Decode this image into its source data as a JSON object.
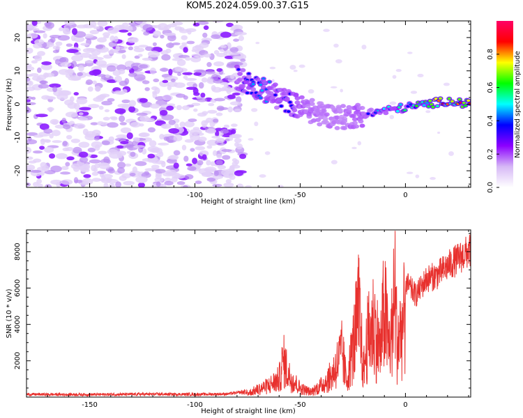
{
  "title": "KOM5.2024.059.00.37.G15",
  "chart_data": [
    {
      "type": "heatmap",
      "xlabel": "Height of straight line (km)",
      "ylabel": "Frequency (Hz)",
      "xlim": [
        -180,
        31
      ],
      "ylim": [
        -25,
        25
      ],
      "xticks": [
        -150,
        -100,
        -50,
        0
      ],
      "yticks": [
        -20,
        -10,
        0,
        10,
        20
      ],
      "colorbar": {
        "label": "Normalized spectral amplitude",
        "range": [
          0,
          1
        ],
        "ticks": [
          "0.0",
          "0.2",
          "0.4",
          "0.6",
          "0.8"
        ],
        "colormap": [
          "#ffffff",
          "#d6b8f6",
          "#8c00ff",
          "#0000ff",
          "#00ffff",
          "#00ff00",
          "#ffff00",
          "#ff0000",
          "#ff0066"
        ]
      },
      "ridge": {
        "description_points_x": [
          -80,
          -70,
          -60,
          -50,
          -40,
          -30,
          -20,
          -10,
          0,
          10,
          20,
          30
        ],
        "frequency_y": [
          8,
          5,
          2,
          -1,
          -3,
          -4,
          -3,
          -2,
          -1,
          0,
          1,
          0
        ],
        "amplitude": [
          0.3,
          0.4,
          0.35,
          0.3,
          0.2,
          0.2,
          0.3,
          0.45,
          0.5,
          0.6,
          0.8,
          0.9
        ]
      },
      "noise_region_x": [
        -180,
        -77
      ]
    },
    {
      "type": "line",
      "xlabel": "Height of straight line (km)",
      "ylabel": "SNR (10 * v/v)",
      "xlim": [
        -180,
        31
      ],
      "ylim": [
        0,
        9200
      ],
      "xticks": [
        -150,
        -100,
        -50,
        0
      ],
      "yticks": [
        2000,
        4000,
        6000,
        8000
      ],
      "color": "#e8312e",
      "series": [
        {
          "x": [
            -180,
            -150,
            -120,
            -100,
            -85,
            -75,
            -70,
            -65,
            -60,
            -58,
            -55,
            -50,
            -45,
            -40,
            -35,
            -30,
            -28,
            -25,
            -22,
            -20,
            -18,
            -15,
            -12,
            -10,
            -8,
            -6,
            -5,
            -4,
            -2,
            0,
            5,
            10,
            15,
            20,
            25,
            31
          ],
          "y": [
            150,
            140,
            160,
            150,
            170,
            300,
            600,
            900,
            1400,
            2900,
            1600,
            700,
            400,
            900,
            1700,
            3500,
            1200,
            3800,
            6700,
            2000,
            4500,
            5800,
            3600,
            7100,
            3900,
            5500,
            9100,
            4200,
            5300,
            6300,
            5600,
            6500,
            6700,
            7200,
            7600,
            8100
          ]
        }
      ]
    }
  ]
}
